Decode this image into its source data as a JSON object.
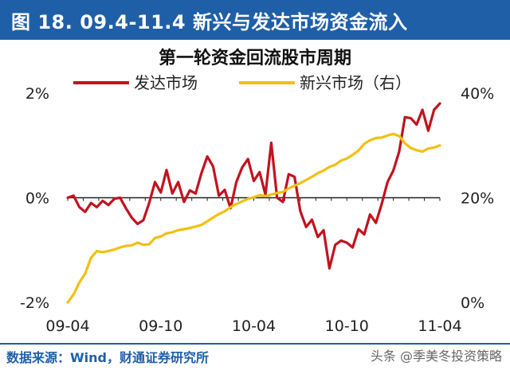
{
  "header": {
    "title": "图 18. 09.4-11.4 新兴与发达市场资金流入"
  },
  "footer": {
    "source": "数据来源：Wind，财通证券研究所"
  },
  "watermark": {
    "text": "头条 @季美冬投资策略"
  },
  "colors": {
    "header_bg": "#1f5fa8",
    "developed": "#c0141f",
    "emerging": "#f2c010"
  },
  "chart_data": {
    "type": "line",
    "title": "第一轮资金回流股市周期",
    "x_tick_labels": [
      "09-04",
      "09-10",
      "10-04",
      "10-10",
      "11-04"
    ],
    "x_range": [
      "2009-04",
      "2011-04"
    ],
    "left_axis": {
      "ticks": [
        "2%",
        "0%",
        "-2%"
      ],
      "ylim": [
        -2,
        2
      ],
      "unit": "%"
    },
    "right_axis": {
      "ticks": [
        "40%",
        "20%",
        "0%"
      ],
      "ylim": [
        0,
        40
      ],
      "unit": "%"
    },
    "zero_line": true,
    "legend_position": "top",
    "series": [
      {
        "name": "发达市场",
        "axis": "left",
        "color": "#c0141f",
        "values": [
          0,
          0.04,
          -0.18,
          -0.27,
          -0.1,
          -0.18,
          -0.06,
          -0.14,
          -0.02,
          0.0,
          -0.2,
          -0.38,
          -0.5,
          -0.43,
          -0.1,
          0.3,
          0.1,
          0.53,
          0.08,
          0.3,
          -0.08,
          0.14,
          0.08,
          0.47,
          0.79,
          0.6,
          0.04,
          0.15,
          -0.2,
          0.3,
          0.58,
          0.74,
          0.32,
          0.49,
          0.06,
          1.05,
          0.0,
          -0.08,
          0.45,
          0.4,
          -0.26,
          -0.56,
          -0.42,
          -0.75,
          -0.62,
          -1.35,
          -0.9,
          -0.82,
          -0.86,
          -0.95,
          -0.6,
          -0.7,
          -0.32,
          -0.48,
          -0.12,
          0.3,
          0.52,
          0.88,
          1.54,
          1.52,
          1.4,
          1.68,
          1.28,
          1.68,
          1.8
        ]
      },
      {
        "name": "新兴市场（右）",
        "axis": "right",
        "color": "#f2c010",
        "values": [
          0,
          1.5,
          3.8,
          5.5,
          8.5,
          9.8,
          9.6,
          9.8,
          10.1,
          10.5,
          10.8,
          10.9,
          11.4,
          11.0,
          11.1,
          12.3,
          12.6,
          13.2,
          13.4,
          13.8,
          14.0,
          14.2,
          14.5,
          14.8,
          15.5,
          16.2,
          16.9,
          17.4,
          18.2,
          18.8,
          19.3,
          19.8,
          20.1,
          20.5,
          20.3,
          20.6,
          20.9,
          21.1,
          21.8,
          22.3,
          22.8,
          23.4,
          24.0,
          24.7,
          25.2,
          25.9,
          26.3,
          27.1,
          27.5,
          28.2,
          29.0,
          30.3,
          31.0,
          31.4,
          31.5,
          31.9,
          32.2,
          31.8,
          30.4,
          29.5,
          29.1,
          28.8,
          29.4,
          29.6,
          30.0
        ]
      }
    ]
  }
}
